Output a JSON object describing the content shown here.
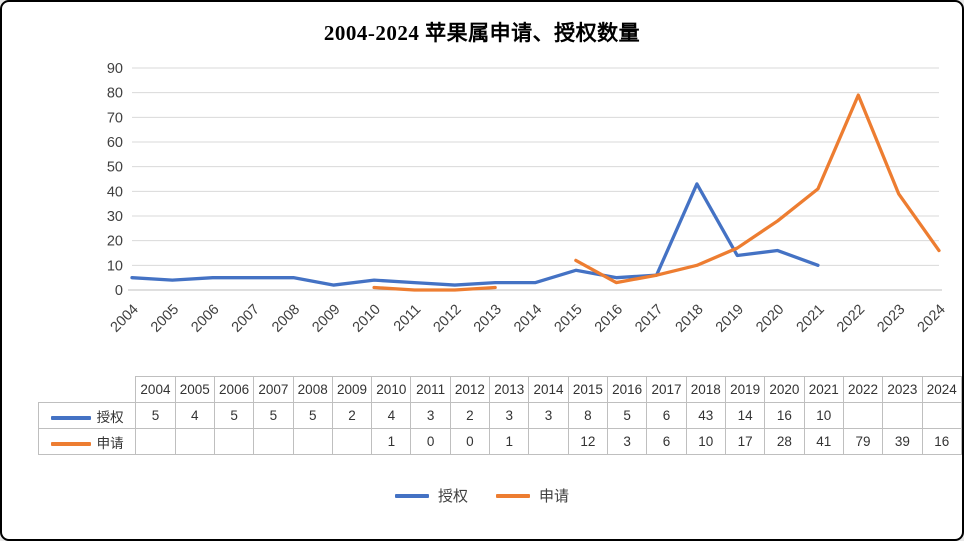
{
  "chart_data": {
    "type": "line",
    "title": "2004-2024 苹果属申请、授权数量",
    "categories": [
      "2004",
      "2005",
      "2006",
      "2007",
      "2008",
      "2009",
      "2010",
      "2011",
      "2012",
      "2013",
      "2014",
      "2015",
      "2016",
      "2017",
      "2018",
      "2019",
      "2020",
      "2021",
      "2022",
      "2023",
      "2024"
    ],
    "series": [
      {
        "name": "授权",
        "color": "#4472C4",
        "values": [
          5,
          4,
          5,
          5,
          5,
          2,
          4,
          3,
          2,
          3,
          3,
          8,
          5,
          6,
          43,
          14,
          16,
          10,
          null,
          null,
          null
        ]
      },
      {
        "name": "申请",
        "color": "#ED7D31",
        "values": [
          null,
          null,
          null,
          null,
          null,
          null,
          1,
          0,
          0,
          1,
          null,
          12,
          3,
          6,
          10,
          17,
          28,
          41,
          79,
          39,
          16
        ]
      }
    ],
    "ylim": [
      0,
      90
    ],
    "ytick_step": 10,
    "grid": true,
    "legend_position": "bottom",
    "data_table_shown": true
  },
  "colors": {
    "gridline": "#d9d9d9",
    "axis_line": "#bfbfbf",
    "axis_text": "#404040",
    "table_border": "#bfbfbf",
    "title_text": "#000000"
  }
}
